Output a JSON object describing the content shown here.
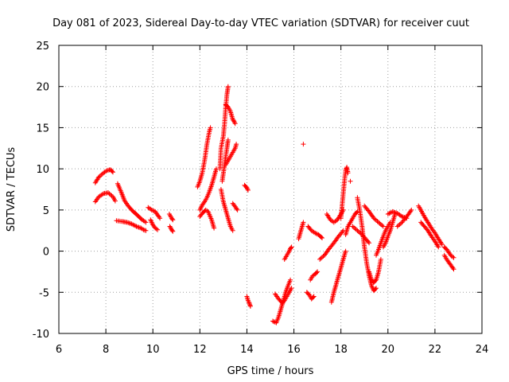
{
  "chart_data": {
    "type": "scatter",
    "title": "Day 081 of 2023, Sidereal Day-to-day VTEC variation (SDTVAR) for receiver cuut",
    "xlabel": "GPS time / hours",
    "ylabel": "SDTVAR / TECUs",
    "xlim": [
      6,
      24
    ],
    "ylim": [
      -10,
      25
    ],
    "xticks": [
      "6",
      "8",
      "10",
      "12",
      "14",
      "16",
      "18",
      "20",
      "22",
      "24"
    ],
    "yticks": [
      "-10",
      "-5",
      "0",
      "5",
      "10",
      "15",
      "20",
      "25"
    ],
    "grid": true,
    "marker": "+",
    "color": "#ff0000",
    "series": [
      {
        "name": "SDTVAR",
        "tracks": [
          {
            "x": [
              7.55,
              7.7,
              7.9,
              8.05,
              8.2,
              8.3
            ],
            "y": [
              8.3,
              9.0,
              9.5,
              9.8,
              9.9,
              9.6
            ]
          },
          {
            "x": [
              7.55,
              7.7,
              7.9,
              8.1,
              8.3,
              8.4
            ],
            "y": [
              6.0,
              6.6,
              7.0,
              7.1,
              6.6,
              6.1
            ]
          },
          {
            "x": [
              8.5,
              8.65,
              8.8,
              8.95,
              9.1,
              9.25,
              9.4,
              9.55,
              9.7
            ],
            "y": [
              8.2,
              7.2,
              6.1,
              5.5,
              5.0,
              4.6,
              4.2,
              3.8,
              3.5
            ]
          },
          {
            "x": [
              8.45,
              8.7,
              8.9,
              9.1,
              9.3,
              9.5,
              9.6,
              9.7
            ],
            "y": [
              3.7,
              3.6,
              3.5,
              3.3,
              3.0,
              2.8,
              2.6,
              2.5
            ]
          },
          {
            "x": [
              9.8,
              9.95,
              10.1,
              10.2,
              10.3
            ],
            "y": [
              5.3,
              5.0,
              4.8,
              4.4,
              4.0
            ]
          },
          {
            "x": [
              9.9,
              10.0,
              10.1,
              10.2
            ],
            "y": [
              3.8,
              3.2,
              2.8,
              2.6
            ]
          },
          {
            "x": [
              10.7,
              10.8,
              10.85
            ],
            "y": [
              4.5,
              4.0,
              3.8
            ]
          },
          {
            "x": [
              10.72,
              10.8,
              10.85
            ],
            "y": [
              3.0,
              2.6,
              2.4
            ]
          },
          {
            "x": [
              11.9,
              12.0,
              12.1,
              12.2,
              12.3,
              12.4,
              12.45
            ],
            "y": [
              7.8,
              8.5,
              9.5,
              11.0,
              13.0,
              14.5,
              15.0
            ]
          },
          {
            "x": [
              12.0,
              12.1,
              12.2,
              12.3,
              12.4,
              12.5,
              12.6,
              12.7
            ],
            "y": [
              5.0,
              5.6,
              6.0,
              6.5,
              7.2,
              8.0,
              9.0,
              10.0
            ]
          },
          {
            "x": [
              12.0,
              12.1,
              12.25,
              12.35,
              12.5,
              12.6
            ],
            "y": [
              4.2,
              4.6,
              5.0,
              4.8,
              3.8,
              2.8
            ]
          },
          {
            "x": [
              12.85,
              12.9,
              13.0,
              13.05,
              13.1,
              13.15,
              13.2
            ],
            "y": [
              10.0,
              12.5,
              14.0,
              15.5,
              17.5,
              19.0,
              20.0
            ]
          },
          {
            "x": [
              12.95,
              13.05,
              13.15,
              13.2
            ],
            "y": [
              8.5,
              10.5,
              12.5,
              13.5
            ]
          },
          {
            "x": [
              13.1,
              13.2,
              13.3,
              13.35,
              13.4,
              13.45,
              13.5
            ],
            "y": [
              17.8,
              17.5,
              17.0,
              16.5,
              16.0,
              15.8,
              15.5
            ]
          },
          {
            "x": [
              13.1,
              13.2,
              13.3,
              13.4,
              13.5,
              13.55
            ],
            "y": [
              10.5,
              11.0,
              11.5,
              12.0,
              12.5,
              13.0
            ]
          },
          {
            "x": [
              12.9,
              13.0,
              13.1,
              13.2,
              13.3,
              13.4
            ],
            "y": [
              7.5,
              6.0,
              5.0,
              4.0,
              3.0,
              2.5
            ]
          },
          {
            "x": [
              13.4,
              13.5,
              13.6
            ],
            "y": [
              5.8,
              5.4,
              5.0
            ]
          },
          {
            "x": [
              13.9,
              14.0,
              14.05
            ],
            "y": [
              8.0,
              7.7,
              7.4
            ]
          },
          {
            "x": [
              14.0,
              14.05,
              14.1,
              14.15
            ],
            "y": [
              -5.5,
              -6.0,
              -6.3,
              -6.7
            ]
          },
          {
            "x": [
              15.1,
              15.25,
              15.35,
              15.45,
              15.55,
              15.65,
              15.75,
              15.85
            ],
            "y": [
              -8.5,
              -8.7,
              -8.0,
              -7.0,
              -6.0,
              -5.0,
              -4.2,
              -3.5
            ]
          },
          {
            "x": [
              15.2,
              15.35,
              15.5,
              15.6,
              15.7,
              15.8,
              15.9
            ],
            "y": [
              -5.2,
              -5.8,
              -6.3,
              -6.0,
              -5.5,
              -5.0,
              -4.5
            ]
          },
          {
            "x": [
              15.6,
              15.7,
              15.8,
              15.85,
              15.9
            ],
            "y": [
              -1.0,
              -0.5,
              0.0,
              0.3,
              0.5
            ]
          },
          {
            "x": [
              16.2,
              16.3,
              16.4
            ],
            "y": [
              1.5,
              2.5,
              3.5
            ]
          },
          {
            "x": [
              16.4
            ],
            "y": [
              13.0
            ]
          },
          {
            "x": [
              16.55,
              16.65,
              16.75,
              16.85
            ],
            "y": [
              -5.0,
              -5.3,
              -5.8,
              -5.5
            ]
          },
          {
            "x": [
              16.7,
              16.8,
              16.9,
              17.0
            ],
            "y": [
              -3.5,
              -3.0,
              -2.8,
              -2.5
            ]
          },
          {
            "x": [
              16.6,
              16.75,
              16.9,
              17.05,
              17.2
            ],
            "y": [
              3.0,
              2.5,
              2.2,
              2.0,
              1.6
            ]
          },
          {
            "x": [
              17.1,
              17.3,
              17.5,
              17.7,
              17.9,
              18.1
            ],
            "y": [
              -1.0,
              -0.5,
              0.3,
              1.0,
              1.8,
              2.5
            ]
          },
          {
            "x": [
              17.4,
              17.55,
              17.7,
              17.85,
              18.0,
              18.1
            ],
            "y": [
              4.5,
              3.8,
              3.5,
              3.8,
              4.5,
              5.0
            ]
          },
          {
            "x": [
              17.6,
              17.7,
              17.8,
              17.9,
              18.0,
              18.1,
              18.2
            ],
            "y": [
              -6.2,
              -5.0,
              -4.0,
              -3.0,
              -2.0,
              -1.0,
              0.0
            ]
          },
          {
            "x": [
              18.0,
              18.05,
              18.1,
              18.15,
              18.2,
              18.25,
              18.3
            ],
            "y": [
              4.0,
              5.5,
              7.0,
              8.5,
              9.8,
              10.2,
              9.5
            ]
          },
          {
            "x": [
              18.4
            ],
            "y": [
              8.5
            ]
          },
          {
            "x": [
              18.2,
              18.3,
              18.4,
              18.5,
              18.6,
              18.7
            ],
            "y": [
              2.0,
              3.0,
              3.5,
              4.0,
              4.5,
              4.8
            ]
          },
          {
            "x": [
              18.5,
              18.7,
              18.9,
              19.05,
              19.2
            ],
            "y": [
              3.0,
              2.5,
              2.0,
              1.5,
              1.0
            ]
          },
          {
            "x": [
              18.7,
              18.8,
              18.9,
              19.0,
              19.1,
              19.2,
              19.3,
              19.4,
              19.5
            ],
            "y": [
              6.5,
              5.0,
              3.0,
              0.5,
              -1.5,
              -3.0,
              -4.2,
              -4.8,
              -4.5
            ]
          },
          {
            "x": [
              19.2,
              19.3,
              19.4,
              19.5,
              19.6,
              19.7
            ],
            "y": [
              -2.5,
              -3.5,
              -3.8,
              -3.5,
              -2.5,
              -1.0
            ]
          },
          {
            "x": [
              19.0,
              19.2,
              19.4,
              19.6,
              19.8
            ],
            "y": [
              5.5,
              4.8,
              4.0,
              3.5,
              3.0
            ]
          },
          {
            "x": [
              19.5,
              19.6,
              19.7,
              19.8,
              19.9,
              20.0,
              20.1
            ],
            "y": [
              -0.5,
              0.2,
              1.0,
              1.8,
              2.5,
              3.0,
              3.5
            ]
          },
          {
            "x": [
              19.8,
              19.9,
              20.0,
              20.1,
              20.2,
              20.3
            ],
            "y": [
              0.5,
              1.0,
              1.8,
              2.5,
              3.5,
              4.5
            ]
          },
          {
            "x": [
              20.0,
              20.2,
              20.4,
              20.6,
              20.8
            ],
            "y": [
              4.5,
              4.8,
              4.6,
              4.2,
              4.0
            ]
          },
          {
            "x": [
              20.4,
              20.6,
              20.8,
              21.0
            ],
            "y": [
              3.0,
              3.5,
              4.2,
              5.0
            ]
          },
          {
            "x": [
              21.3,
              21.4,
              21.55,
              21.7,
              21.85,
              22.0,
              22.15,
              22.3
            ],
            "y": [
              5.5,
              5.0,
              4.2,
              3.5,
              2.8,
              2.2,
              1.5,
              0.8
            ]
          },
          {
            "x": [
              21.4,
              21.55,
              21.7,
              21.85,
              22.0,
              22.15
            ],
            "y": [
              3.5,
              3.0,
              2.5,
              1.8,
              1.2,
              0.5
            ]
          },
          {
            "x": [
              22.4,
              22.5,
              22.6,
              22.7,
              22.8
            ],
            "y": [
              0.5,
              0.2,
              -0.2,
              -0.6,
              -0.8
            ]
          },
          {
            "x": [
              22.4,
              22.5,
              22.6,
              22.7,
              22.8
            ],
            "y": [
              -0.5,
              -1.0,
              -1.4,
              -1.8,
              -2.2
            ]
          }
        ]
      }
    ]
  }
}
